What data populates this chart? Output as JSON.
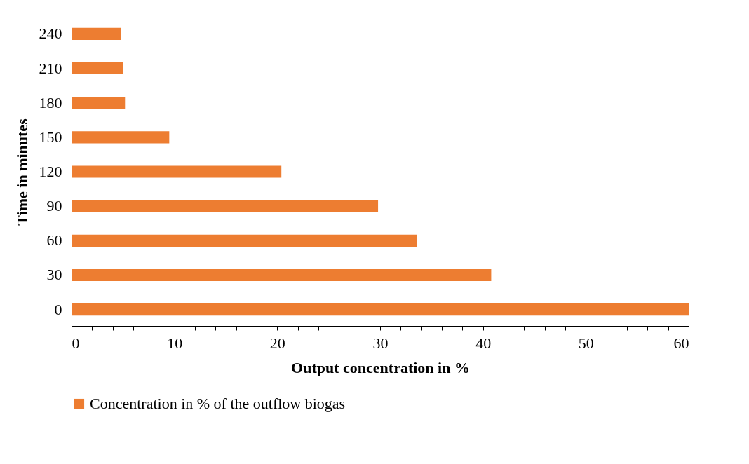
{
  "chart_data": {
    "type": "bar",
    "orientation": "horizontal",
    "xlabel": "Output concentration in %",
    "ylabel": "Time in minutes",
    "categories": [
      "240",
      "210",
      "180",
      "150",
      "120",
      "90",
      "60",
      "30",
      "0"
    ],
    "series": [
      {
        "name": "Concentration in % of the outflow biogas",
        "color": "#ed7d31",
        "values": [
          4.8,
          5.0,
          5.2,
          9.5,
          20.4,
          29.8,
          33.6,
          40.8,
          60
        ]
      }
    ],
    "xlim": [
      0,
      60
    ],
    "xticks": [
      0,
      {
        "value": 2,
        "label": null
      },
      {
        "value": 4,
        "label": null
      },
      {
        "value": 6,
        "label": null
      },
      {
        "value": 8,
        "label": null
      },
      10,
      {
        "value": 12,
        "label": null
      },
      {
        "value": 14,
        "label": null
      },
      {
        "value": 16,
        "label": null
      },
      {
        "value": 18,
        "label": null
      },
      20,
      {
        "value": 22,
        "label": null
      },
      {
        "value": 24,
        "label": null
      },
      {
        "value": 26,
        "label": null
      },
      {
        "value": 28,
        "label": null
      },
      30,
      {
        "value": 32,
        "label": null
      },
      {
        "value": 34,
        "label": null
      },
      {
        "value": 36,
        "label": null
      },
      {
        "value": 38,
        "label": null
      },
      40,
      {
        "value": 42,
        "label": null
      },
      {
        "value": 44,
        "label": null
      },
      {
        "value": 46,
        "label": null
      },
      {
        "value": 48,
        "label": null
      },
      50,
      {
        "value": 52,
        "label": null
      },
      {
        "value": 54,
        "label": null
      },
      {
        "value": 56,
        "label": null
      },
      {
        "value": 58,
        "label": null
      },
      60
    ],
    "grid": false,
    "legend": "bottom"
  }
}
